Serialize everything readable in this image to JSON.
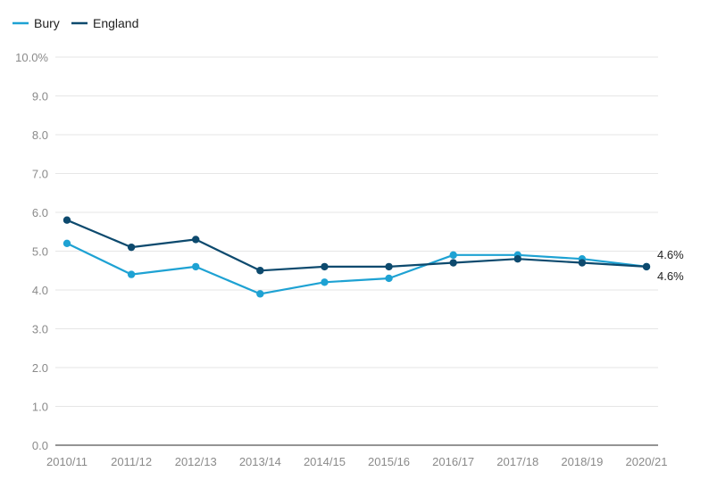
{
  "chart_data": {
    "type": "line",
    "categories": [
      "2010/11",
      "2011/12",
      "2012/13",
      "2013/14",
      "2014/15",
      "2015/16",
      "2016/17",
      "2017/18",
      "2018/19",
      "2020/21"
    ],
    "y_ticks": [
      "0.0",
      "1.0",
      "2.0",
      "3.0",
      "4.0",
      "5.0",
      "6.0",
      "7.0",
      "8.0",
      "9.0",
      "10.0%"
    ],
    "ylim": [
      0,
      10
    ],
    "grid": true,
    "legend": "top-left",
    "series": [
      {
        "name": "Bury",
        "color": "#1ea2d3",
        "values": [
          5.2,
          4.4,
          4.6,
          3.9,
          4.2,
          4.3,
          4.9,
          4.9,
          4.8,
          4.6
        ],
        "end_label": "4.6%"
      },
      {
        "name": "England",
        "color": "#0d4a6e",
        "values": [
          5.8,
          5.1,
          5.3,
          4.5,
          4.6,
          4.6,
          4.7,
          4.8,
          4.7,
          4.6
        ],
        "end_label": "4.6%"
      }
    ]
  }
}
